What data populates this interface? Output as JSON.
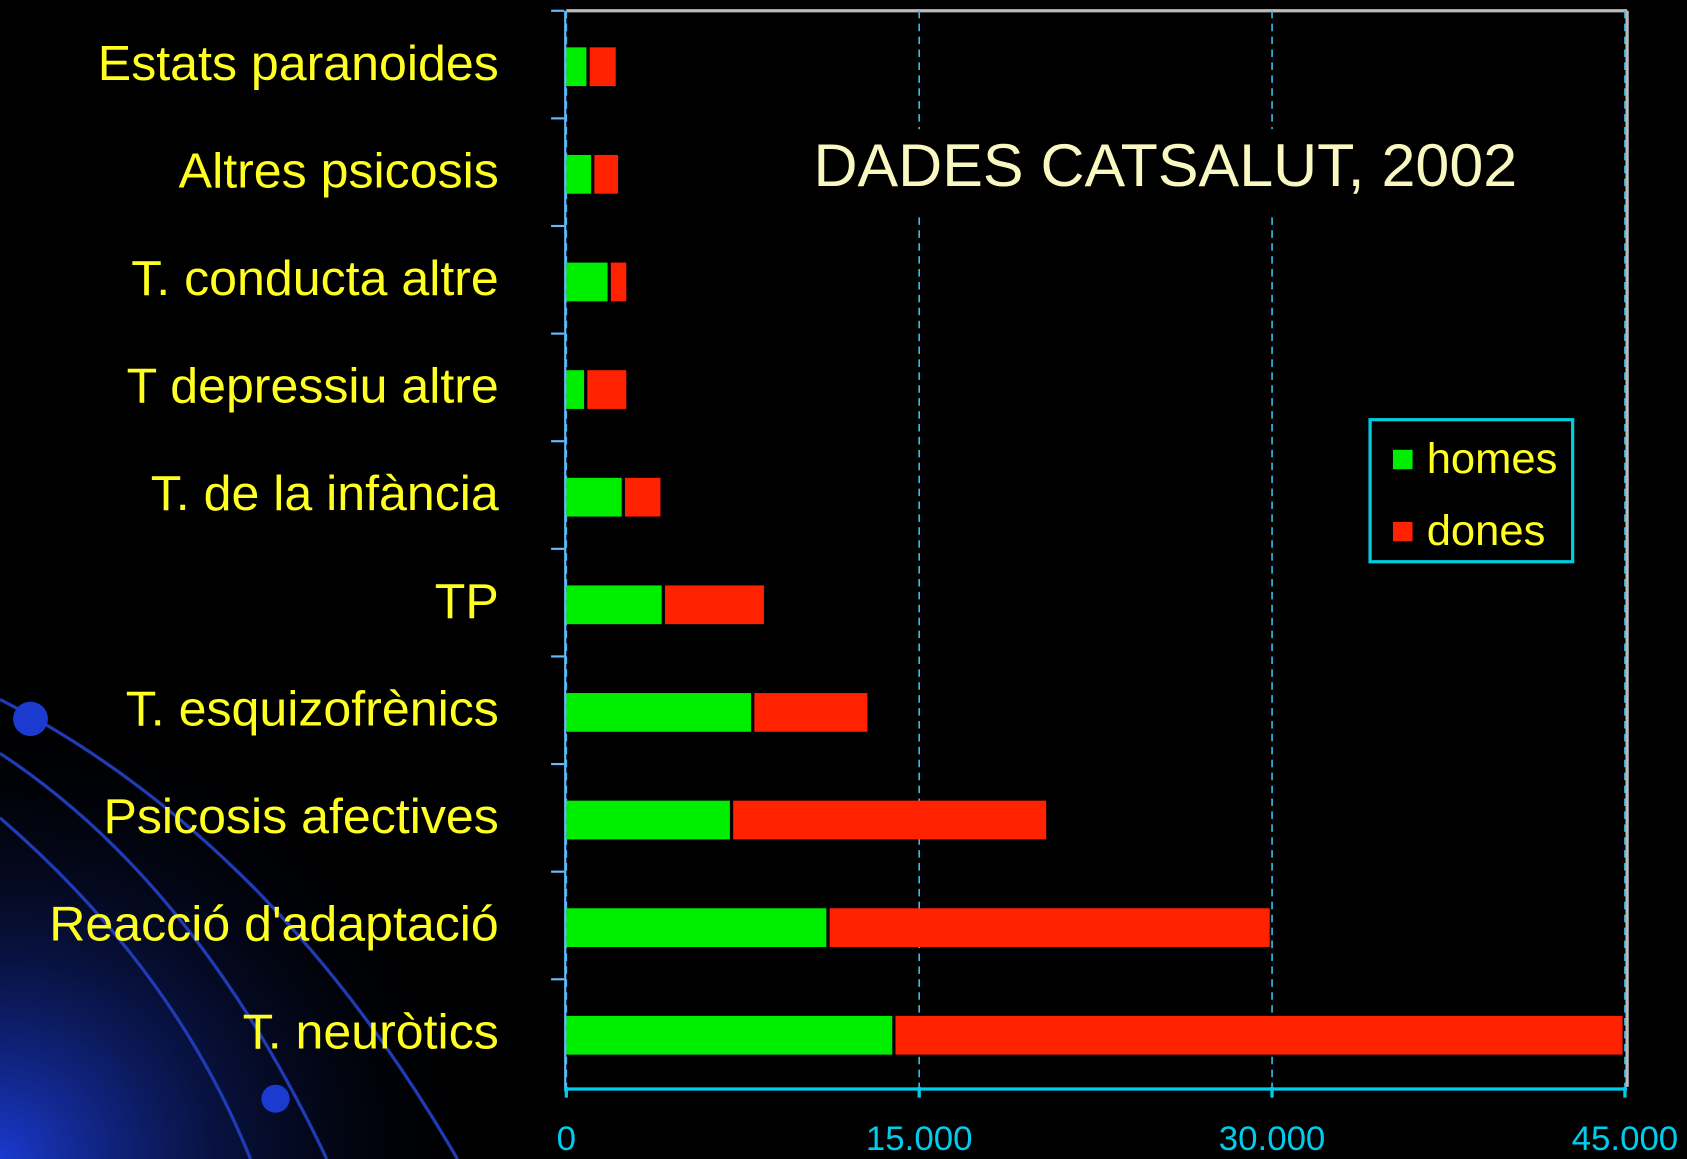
{
  "chart_data": {
    "type": "stacked-bar-horizontal",
    "title": "DADES CATSALUT, 2002",
    "categories": [
      "Estats paranoides",
      "Altres psicosis",
      "T. conducta altre",
      "T depressiu altre",
      "T. de la infància",
      "TP",
      "T. esquizofrènics",
      "Psicosis afectives",
      "Reacció d'adaptació",
      "T. neuròtics"
    ],
    "series": [
      {
        "name": "homes",
        "color": "#00ee00",
        "values": [
          900,
          1100,
          1800,
          800,
          2400,
          4100,
          7900,
          7000,
          11100,
          13900
        ]
      },
      {
        "name": "dones",
        "color": "#ff2200",
        "values": [
          1200,
          1100,
          750,
          1750,
          1600,
          4300,
          4900,
          13400,
          18800,
          31000
        ]
      }
    ],
    "xlim": [
      0,
      45000
    ],
    "xticks": [
      0,
      {
        "value": 15000,
        "label": "15.000"
      },
      {
        "value": 30000,
        "label": "30.000"
      },
      {
        "value": 45000,
        "label": "45.000"
      }
    ],
    "grid": true,
    "legend": "right"
  }
}
